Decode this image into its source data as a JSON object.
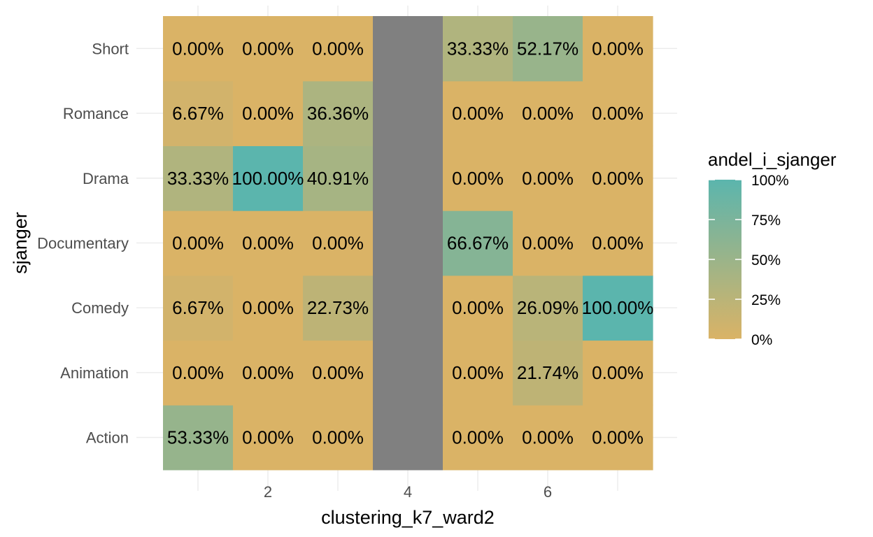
{
  "chart_data": {
    "type": "heatmap",
    "xlabel": "clustering_k7_ward2",
    "ylabel": "sjanger",
    "x": [
      1,
      2,
      3,
      4,
      5,
      6,
      7
    ],
    "x_ticks": [
      2,
      4,
      6
    ],
    "x_tick_labels": [
      "2",
      "4",
      "6"
    ],
    "y_categories": [
      "Action",
      "Animation",
      "Comedy",
      "Documentary",
      "Drama",
      "Romance",
      "Short"
    ],
    "na_columns": [
      4
    ],
    "na_color": "#808080",
    "values": {
      "Action": [
        53.33,
        0.0,
        0.0,
        null,
        0.0,
        0.0,
        0.0
      ],
      "Animation": [
        0.0,
        0.0,
        0.0,
        null,
        0.0,
        21.74,
        0.0
      ],
      "Comedy": [
        6.67,
        0.0,
        22.73,
        null,
        0.0,
        26.09,
        100.0
      ],
      "Documentary": [
        0.0,
        0.0,
        0.0,
        null,
        66.67,
        0.0,
        0.0
      ],
      "Drama": [
        33.33,
        100.0,
        40.91,
        null,
        0.0,
        0.0,
        0.0
      ],
      "Romance": [
        6.67,
        0.0,
        36.36,
        null,
        0.0,
        0.0,
        0.0
      ],
      "Short": [
        0.0,
        0.0,
        0.0,
        null,
        33.33,
        52.17,
        0.0
      ]
    },
    "legend": {
      "title": "andel_i_sjanger",
      "breaks": [
        0,
        25,
        50,
        75,
        100
      ],
      "labels": [
        "0%",
        "25%",
        "50%",
        "75%",
        "100%"
      ],
      "low_color": "#dab366",
      "high_color": "#5bb5ad",
      "placement": "right"
    },
    "grid": true,
    "colors": {
      "background": "#ffffff",
      "grid": "#ebebeb",
      "tick_text": "#4d4d4d"
    }
  }
}
